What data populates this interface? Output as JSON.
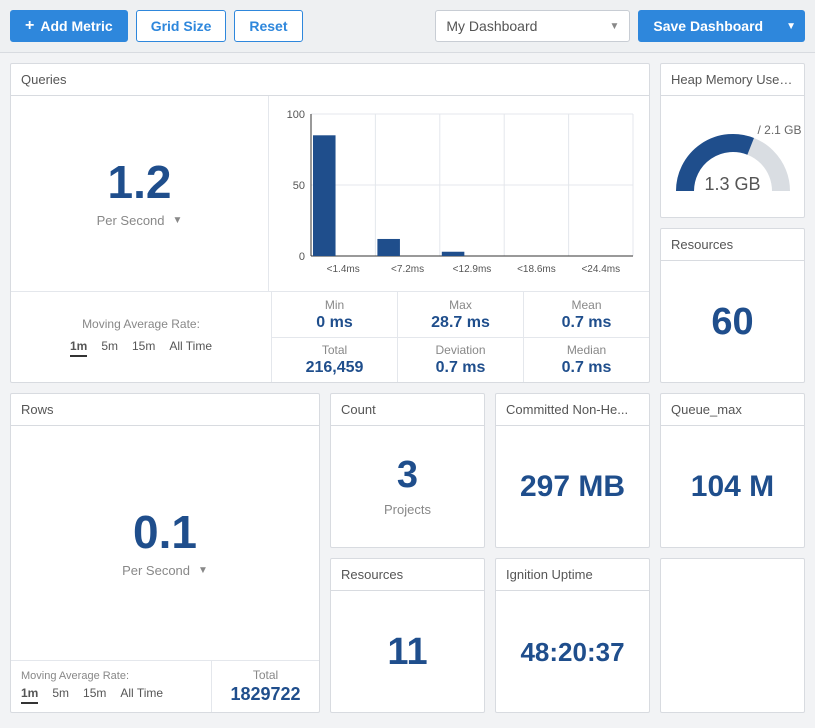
{
  "colors": {
    "primary": "#2e87dc",
    "accent_dark": "#1f4e8c",
    "border": "#d8dbe0",
    "muted": "#888",
    "bg": "#f2f3f5",
    "gauge_track": "#d9dde2"
  },
  "toolbar": {
    "add_metric": "Add Metric",
    "grid_size": "Grid Size",
    "reset": "Reset",
    "dashboard_select": "My Dashboard",
    "save": "Save Dashboard"
  },
  "queries": {
    "title": "Queries",
    "value": "1.2",
    "unit": "Per Second",
    "chart": {
      "type": "bar",
      "ylim": [
        0,
        100
      ],
      "yticks": [
        0,
        50,
        100
      ],
      "bar_color": "#1f4e8c",
      "grid_color": "#e4e7ec",
      "categories": [
        "<1.4ms",
        "<7.2ms",
        "<12.9ms",
        "<18.6ms",
        "<24.4ms"
      ],
      "values": [
        85,
        12,
        3,
        0,
        0
      ]
    },
    "mar_label": "Moving Average Rate:",
    "mar_tabs": [
      "1m",
      "5m",
      "15m",
      "All Time"
    ],
    "mar_active": "1m",
    "stats": {
      "min": {
        "label": "Min",
        "value": "0 ms"
      },
      "max": {
        "label": "Max",
        "value": "28.7 ms"
      },
      "mean": {
        "label": "Mean",
        "value": "0.7 ms"
      },
      "total": {
        "label": "Total",
        "value": "216,459"
      },
      "deviation": {
        "label": "Deviation",
        "value": "0.7 ms"
      },
      "median": {
        "label": "Median",
        "value": "0.7 ms"
      }
    }
  },
  "heap": {
    "title": "Heap Memory Used...",
    "max": "2.1 GB",
    "value": "1.3 GB",
    "fraction": 0.62
  },
  "resources_top": {
    "title": "Resources",
    "value": "60"
  },
  "rows": {
    "title": "Rows",
    "value": "0.1",
    "unit": "Per Second",
    "mar_label": "Moving Average Rate:",
    "mar_tabs": [
      "1m",
      "5m",
      "15m",
      "All Time"
    ],
    "mar_active": "1m",
    "total_label": "Total",
    "total_value": "1829722"
  },
  "count": {
    "title": "Count",
    "value": "3",
    "sub": "Projects"
  },
  "committed": {
    "title": "Committed Non-He...",
    "value": "297 MB"
  },
  "queue_max": {
    "title": "Queue_max",
    "value": "104 M"
  },
  "resources_bottom": {
    "title": "Resources",
    "value": "11"
  },
  "uptime": {
    "title": "Ignition Uptime",
    "value": "48:20:37"
  }
}
